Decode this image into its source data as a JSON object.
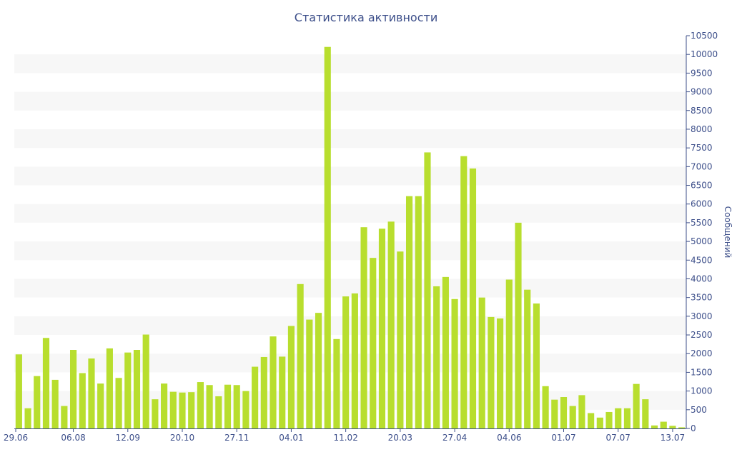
{
  "chart_data": {
    "type": "bar",
    "title": "Статистика активности",
    "xlabel": "",
    "ylabel": "Сообщений",
    "ylim": [
      0,
      10500
    ],
    "ytick_step": 500,
    "grid": "alternating horizontal bands",
    "colors": {
      "bar": "#b8de2e",
      "band": "#f7f7f7",
      "axis": "#3d4f8a",
      "text": "#3d4f8a"
    },
    "x_tick_labels": [
      {
        "label": "29.06",
        "index": 0
      },
      {
        "label": "06.08",
        "index": 6
      },
      {
        "label": "12.09",
        "index": 12
      },
      {
        "label": "20.10",
        "index": 18
      },
      {
        "label": "27.11",
        "index": 24
      },
      {
        "label": "04.01",
        "index": 30
      },
      {
        "label": "11.02",
        "index": 36
      },
      {
        "label": "20.03",
        "index": 42
      },
      {
        "label": "27.04",
        "index": 48
      },
      {
        "label": "04.06",
        "index": 54
      },
      {
        "label": "01.07",
        "index": 60
      },
      {
        "label": "07.07",
        "index": 66
      },
      {
        "label": "13.07",
        "index": 72
      }
    ],
    "values": [
      1980,
      540,
      1400,
      2420,
      1300,
      600,
      2100,
      1480,
      1870,
      1200,
      2140,
      1350,
      2030,
      2100,
      2510,
      780,
      1200,
      980,
      960,
      970,
      1240,
      1160,
      860,
      1170,
      1160,
      1000,
      1650,
      1910,
      2460,
      1920,
      2740,
      3860,
      2910,
      3090,
      10200,
      2390,
      3530,
      3610,
      5380,
      4560,
      5340,
      5530,
      4730,
      6210,
      6210,
      7380,
      3800,
      4050,
      3460,
      7280,
      6950,
      3500,
      2980,
      2940,
      3980,
      5500,
      3710,
      3340,
      1130,
      770,
      840,
      600,
      890,
      410,
      290,
      440,
      540,
      540,
      1190,
      780,
      80,
      180,
      70,
      30
    ]
  }
}
